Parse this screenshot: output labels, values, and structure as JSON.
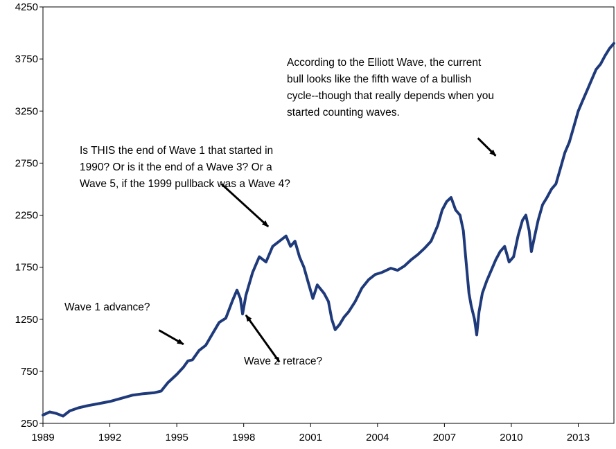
{
  "chart_data": {
    "type": "line",
    "title": "",
    "xlabel": "",
    "ylabel": "",
    "xlim": [
      1989,
      2014.6
    ],
    "ylim": [
      250,
      4250
    ],
    "x_ticks": [
      1989,
      1992,
      1995,
      1998,
      2001,
      2004,
      2007,
      2010,
      2013
    ],
    "x_tick_labels": [
      "1989",
      "1992",
      "1995",
      "1998",
      "2001",
      "2004",
      "2007",
      "2010",
      "2013"
    ],
    "y_ticks": [
      250,
      750,
      1250,
      1750,
      2250,
      2750,
      3250,
      3750,
      4250
    ],
    "y_tick_labels": [
      "250",
      "750",
      "1250",
      "1750",
      "2250",
      "2750",
      "3250",
      "3750",
      "4250"
    ],
    "grid": false,
    "legend": "none",
    "series": [
      {
        "color": "#1f3a7a",
        "points": [
          [
            1989.0,
            330
          ],
          [
            1989.3,
            360
          ],
          [
            1989.6,
            345
          ],
          [
            1989.9,
            320
          ],
          [
            1990.2,
            370
          ],
          [
            1990.6,
            400
          ],
          [
            1991.0,
            420
          ],
          [
            1991.5,
            440
          ],
          [
            1992.0,
            460
          ],
          [
            1992.5,
            490
          ],
          [
            1993.0,
            520
          ],
          [
            1993.5,
            535
          ],
          [
            1994.0,
            545
          ],
          [
            1994.3,
            560
          ],
          [
            1994.6,
            640
          ],
          [
            1995.0,
            720
          ],
          [
            1995.3,
            790
          ],
          [
            1995.5,
            850
          ],
          [
            1995.7,
            860
          ],
          [
            1996.0,
            950
          ],
          [
            1996.3,
            1000
          ],
          [
            1996.6,
            1110
          ],
          [
            1996.9,
            1220
          ],
          [
            1997.2,
            1260
          ],
          [
            1997.5,
            1430
          ],
          [
            1997.7,
            1530
          ],
          [
            1997.85,
            1450
          ],
          [
            1997.95,
            1300
          ],
          [
            1998.1,
            1480
          ],
          [
            1998.4,
            1700
          ],
          [
            1998.7,
            1850
          ],
          [
            1999.0,
            1800
          ],
          [
            1999.3,
            1950
          ],
          [
            1999.6,
            2000
          ],
          [
            1999.9,
            2050
          ],
          [
            2000.1,
            1950
          ],
          [
            2000.3,
            2000
          ],
          [
            2000.5,
            1850
          ],
          [
            2000.7,
            1750
          ],
          [
            2000.9,
            1600
          ],
          [
            2001.1,
            1450
          ],
          [
            2001.3,
            1580
          ],
          [
            2001.6,
            1500
          ],
          [
            2001.8,
            1420
          ],
          [
            2001.95,
            1250
          ],
          [
            2002.1,
            1150
          ],
          [
            2002.3,
            1200
          ],
          [
            2002.5,
            1270
          ],
          [
            2002.7,
            1320
          ],
          [
            2003.0,
            1420
          ],
          [
            2003.3,
            1550
          ],
          [
            2003.6,
            1630
          ],
          [
            2003.9,
            1680
          ],
          [
            2004.2,
            1700
          ],
          [
            2004.6,
            1740
          ],
          [
            2004.9,
            1720
          ],
          [
            2005.2,
            1760
          ],
          [
            2005.5,
            1820
          ],
          [
            2005.8,
            1870
          ],
          [
            2006.1,
            1930
          ],
          [
            2006.4,
            2000
          ],
          [
            2006.7,
            2150
          ],
          [
            2006.9,
            2300
          ],
          [
            2007.1,
            2380
          ],
          [
            2007.3,
            2420
          ],
          [
            2007.5,
            2300
          ],
          [
            2007.7,
            2250
          ],
          [
            2007.85,
            2100
          ],
          [
            2007.95,
            1850
          ],
          [
            2008.1,
            1500
          ],
          [
            2008.2,
            1380
          ],
          [
            2008.35,
            1250
          ],
          [
            2008.45,
            1100
          ],
          [
            2008.55,
            1320
          ],
          [
            2008.7,
            1500
          ],
          [
            2008.9,
            1620
          ],
          [
            2009.1,
            1720
          ],
          [
            2009.3,
            1820
          ],
          [
            2009.5,
            1900
          ],
          [
            2009.7,
            1950
          ],
          [
            2009.9,
            1800
          ],
          [
            2010.1,
            1850
          ],
          [
            2010.3,
            2050
          ],
          [
            2010.5,
            2200
          ],
          [
            2010.65,
            2250
          ],
          [
            2010.8,
            2100
          ],
          [
            2010.9,
            1900
          ],
          [
            2011.05,
            2050
          ],
          [
            2011.2,
            2200
          ],
          [
            2011.4,
            2350
          ],
          [
            2011.6,
            2420
          ],
          [
            2011.8,
            2500
          ],
          [
            2012.0,
            2550
          ],
          [
            2012.2,
            2700
          ],
          [
            2012.4,
            2850
          ],
          [
            2012.6,
            2950
          ],
          [
            2012.8,
            3100
          ],
          [
            2013.0,
            3250
          ],
          [
            2013.2,
            3350
          ],
          [
            2013.4,
            3450
          ],
          [
            2013.6,
            3550
          ],
          [
            2013.8,
            3650
          ],
          [
            2014.0,
            3700
          ],
          [
            2014.2,
            3780
          ],
          [
            2014.4,
            3850
          ],
          [
            2014.6,
            3900
          ]
        ]
      }
    ],
    "annotations": [
      {
        "lines": [
          "According to the Elliott Wave, the current",
          "bull looks like the fifth wave of a bullish",
          "cycle--though that really depends when you",
          "started counting waves."
        ],
        "arrow_tail": [
          2008.5,
          2990
        ],
        "arrow_head": [
          2009.3,
          2820
        ]
      },
      {
        "lines": [
          "Is THIS the end of Wave 1 that started in",
          "1990? Or is it the end of a Wave 3? Or a",
          "Wave 5, if the 1999 pullback was a Wave 4?"
        ],
        "arrow_tail": [
          1997.0,
          2550
        ],
        "arrow_head": [
          1999.1,
          2140
        ]
      },
      {
        "lines": [
          "Wave 1 advance?"
        ],
        "arrow_tail": [
          1994.2,
          1145
        ],
        "arrow_head": [
          1995.3,
          1010
        ]
      },
      {
        "lines": [
          "Wave 2 retrace?"
        ],
        "arrow_tail": [
          1999.6,
          840
        ],
        "arrow_head": [
          1998.1,
          1290
        ]
      }
    ]
  }
}
